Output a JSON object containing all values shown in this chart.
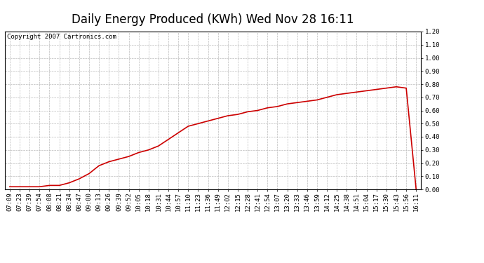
{
  "title": "Daily Energy Produced (KWh) Wed Nov 28 16:11",
  "copyright_text": "Copyright 2007 Cartronics.com",
  "line_color": "#cc0000",
  "background_color": "#ffffff",
  "plot_bg_color": "#ffffff",
  "grid_color": "#bbbbbb",
  "border_color": "#000000",
  "ylim": [
    0.0,
    1.2
  ],
  "yticks": [
    0.0,
    0.1,
    0.2,
    0.3,
    0.4,
    0.5,
    0.6,
    0.7,
    0.8,
    0.9,
    1.0,
    1.1,
    1.2
  ],
  "x_labels": [
    "07:09",
    "07:23",
    "07:39",
    "07:54",
    "08:08",
    "08:21",
    "08:34",
    "08:47",
    "09:00",
    "09:13",
    "09:26",
    "09:39",
    "09:52",
    "10:05",
    "10:18",
    "10:31",
    "10:44",
    "10:57",
    "11:10",
    "11:23",
    "11:36",
    "11:49",
    "12:02",
    "12:15",
    "12:28",
    "12:41",
    "12:54",
    "13:07",
    "13:20",
    "13:33",
    "13:46",
    "13:59",
    "14:12",
    "14:25",
    "14:38",
    "14:51",
    "15:04",
    "15:17",
    "15:30",
    "15:43",
    "15:56",
    "16:11"
  ],
  "y_values": [
    0.02,
    0.02,
    0.02,
    0.02,
    0.03,
    0.03,
    0.05,
    0.08,
    0.12,
    0.18,
    0.21,
    0.23,
    0.25,
    0.28,
    0.3,
    0.33,
    0.38,
    0.43,
    0.48,
    0.5,
    0.52,
    0.54,
    0.56,
    0.57,
    0.59,
    0.6,
    0.62,
    0.63,
    0.65,
    0.66,
    0.67,
    0.68,
    0.7,
    0.72,
    0.73,
    0.74,
    0.75,
    0.76,
    0.77,
    0.78,
    0.77,
    0.0
  ],
  "title_fontsize": 12,
  "tick_fontsize": 6.5,
  "copyright_fontsize": 6.5,
  "figsize": [
    6.9,
    3.75
  ],
  "dpi": 100
}
